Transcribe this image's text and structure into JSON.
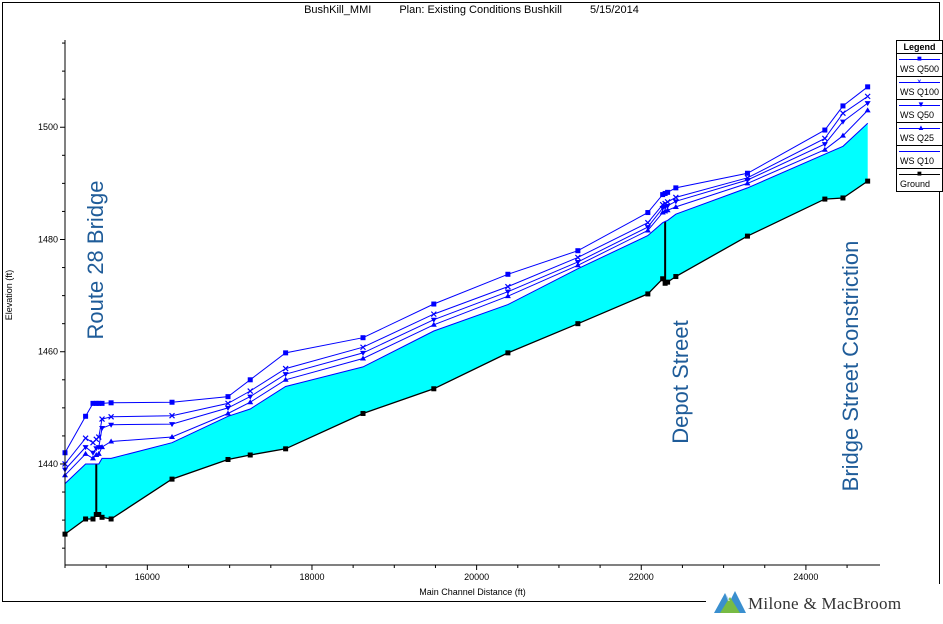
{
  "header": {
    "project": "BushKill_MMI",
    "plan": "Plan: Existing Conditions Bushkill",
    "date": "5/15/2014"
  },
  "legend": {
    "title": "Legend",
    "items": [
      {
        "label": "WS Q500",
        "marker": "square-icon",
        "color": "#0000ff"
      },
      {
        "label": "WS Q100",
        "marker": "x-icon",
        "color": "#0000ff"
      },
      {
        "label": "WS Q50",
        "marker": "triangle-down-icon",
        "color": "#0000ff"
      },
      {
        "label": "WS Q25",
        "marker": "triangle-up-icon",
        "color": "#0000ff"
      },
      {
        "label": "WS Q10",
        "marker": "line-icon",
        "color": "#0000ff"
      },
      {
        "label": "Ground",
        "marker": "square-icon",
        "color": "#000000"
      }
    ]
  },
  "logo": {
    "text": "Milone & MacBroom"
  },
  "chart_data": {
    "type": "line",
    "title": "",
    "xlabel": "Main Channel Distance (ft)",
    "ylabel": "Elevation (ft)",
    "xlim": [
      15000,
      24900
    ],
    "ylim": [
      1422,
      1520
    ],
    "xticks": [
      16000,
      18000,
      20000,
      22000,
      24000
    ],
    "yticks": [
      1440,
      1460,
      1480,
      1500
    ],
    "grid": false,
    "legend_position": "right",
    "fill": {
      "between": [
        "Ground",
        "WS Q10"
      ],
      "color": "#00ffff"
    },
    "annotations": [
      {
        "text": "Route 28 Bridge",
        "x": 15380
      },
      {
        "text": "Depot Street",
        "x": 22290
      },
      {
        "text": "Bridge Street Constriction",
        "x": 24450
      }
    ],
    "x": [
      15000,
      15250,
      15340,
      15380,
      15410,
      15450,
      15560,
      16300,
      16980,
      17250,
      17680,
      18620,
      19480,
      20380,
      21230,
      22080,
      22260,
      22290,
      22320,
      22420,
      23290,
      24230,
      24450,
      24750
    ],
    "series": [
      {
        "name": "WS Q500",
        "color": "#0000ff",
        "marker": "square",
        "values": [
          1442.0,
          1448.5,
          1450.8,
          1450.8,
          1450.8,
          1450.8,
          1450.9,
          1451.0,
          1452.0,
          1455.0,
          1459.8,
          1462.5,
          1468.5,
          1473.8,
          1478.0,
          1484.8,
          1488.0,
          1488.2,
          1488.4,
          1489.2,
          1491.8,
          1499.5,
          1503.8,
          1507.2
        ]
      },
      {
        "name": "WS Q100",
        "color": "#0000ff",
        "marker": "x",
        "values": [
          1440.0,
          1444.6,
          1443.8,
          1444.4,
          1444.8,
          1448.0,
          1448.4,
          1448.6,
          1450.8,
          1453.0,
          1457.0,
          1460.8,
          1466.7,
          1471.6,
          1476.8,
          1483.0,
          1486.2,
          1486.4,
          1486.7,
          1487.5,
          1491.0,
          1498.0,
          1502.5,
          1505.5
        ]
      },
      {
        "name": "WS Q50",
        "color": "#0000ff",
        "marker": "triangle-down",
        "values": [
          1439.0,
          1443.0,
          1442.0,
          1442.8,
          1443.0,
          1446.4,
          1447.0,
          1447.1,
          1450.0,
          1452.0,
          1456.0,
          1459.8,
          1465.7,
          1470.7,
          1476.0,
          1482.2,
          1485.6,
          1485.8,
          1486.0,
          1486.8,
          1490.6,
          1497.0,
          1501.0,
          1504.3
        ]
      },
      {
        "name": "WS Q25",
        "color": "#0000ff",
        "marker": "triangle-up",
        "values": [
          1438.0,
          1441.8,
          1441.0,
          1441.6,
          1441.8,
          1443.0,
          1444.0,
          1444.8,
          1449.0,
          1451.0,
          1455.0,
          1458.8,
          1464.8,
          1469.9,
          1475.4,
          1481.6,
          1484.8,
          1485.0,
          1485.2,
          1485.8,
          1490.0,
          1496.0,
          1498.5,
          1503.0
        ]
      },
      {
        "name": "WS Q10",
        "color": "#0000ff",
        "marker": "none",
        "values": [
          1436.5,
          1440.0,
          1440.0,
          1440.0,
          1440.0,
          1441.0,
          1441.0,
          1443.8,
          1448.5,
          1449.8,
          1453.8,
          1457.3,
          1463.7,
          1468.4,
          1474.8,
          1480.7,
          1483.0,
          1483.2,
          1483.4,
          1484.5,
          1489.2,
          1495.2,
          1496.6,
          1500.7
        ]
      },
      {
        "name": "Ground",
        "color": "#000000",
        "marker": "square",
        "values": [
          1427.5,
          1430.2,
          1430.2,
          1431.0,
          1431.0,
          1430.5,
          1430.2,
          1437.3,
          1440.8,
          1441.6,
          1442.7,
          1449.0,
          1453.4,
          1459.8,
          1465.0,
          1470.3,
          1473.0,
          1472.2,
          1472.4,
          1473.4,
          1480.6,
          1487.2,
          1487.4,
          1490.4
        ]
      }
    ]
  }
}
